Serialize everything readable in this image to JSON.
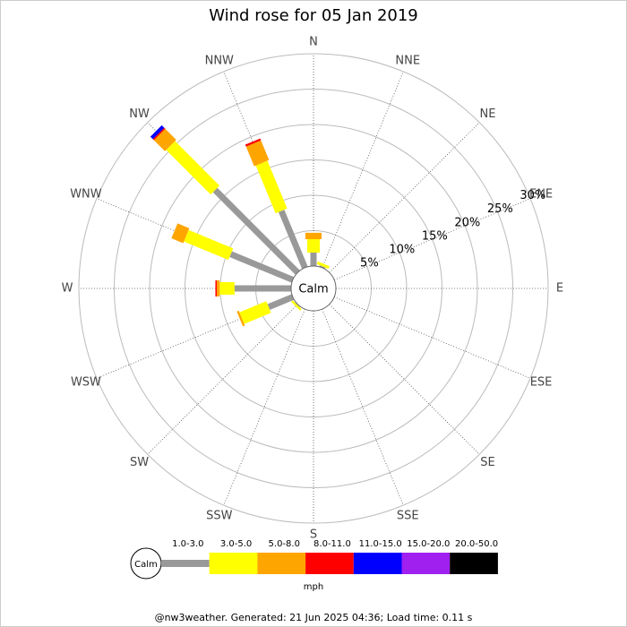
{
  "chart_data": {
    "type": "windrose",
    "title": "Wind rose for 05 Jan 2019",
    "directions": [
      "N",
      "NNE",
      "NE",
      "ENE",
      "E",
      "ESE",
      "SE",
      "SSE",
      "S",
      "SSW",
      "SW",
      "WSW",
      "W",
      "WNW",
      "NW",
      "NNW"
    ],
    "calm_label": "Calm",
    "rlim": [
      0,
      30
    ],
    "rticks": [
      {
        "value": 5,
        "label": "5%"
      },
      {
        "value": 10,
        "label": "10%"
      },
      {
        "value": 15,
        "label": "15%"
      },
      {
        "value": 20,
        "label": "20%"
      },
      {
        "value": 25,
        "label": "25%"
      },
      {
        "value": 30,
        "label": "30%"
      }
    ],
    "legend_unit": "mph",
    "series": [
      {
        "name": "1.0-3.0",
        "color": "#999999",
        "values": [
          1.9,
          0.2,
          0,
          0,
          0,
          0,
          0,
          0,
          0,
          0,
          0.1,
          3.7,
          8.0,
          9.5,
          16.5,
          8.7
        ]
      },
      {
        "name": "3.0-5.0",
        "color": "#ffff00",
        "values": [
          1.9,
          0.4,
          0,
          0,
          0,
          0,
          0,
          0,
          0,
          0,
          0.3,
          4.1,
          2.1,
          6.8,
          8.9,
          7.3
        ]
      },
      {
        "name": "5.0-8.0",
        "color": "#ffa500",
        "values": [
          0.9,
          0,
          0,
          0,
          0,
          0,
          0,
          0,
          0,
          0,
          0,
          0.3,
          0.4,
          1.8,
          2.2,
          3.0
        ]
      },
      {
        "name": "8.0-11.0",
        "color": "#ff0000",
        "values": [
          0,
          0,
          0,
          0,
          0,
          0,
          0,
          0,
          0,
          0,
          0,
          0,
          0.2,
          0,
          0.2,
          0.3
        ]
      },
      {
        "name": "11.0-15.0",
        "color": "#0000ff",
        "values": [
          0,
          0,
          0,
          0,
          0,
          0,
          0,
          0,
          0,
          0,
          0,
          0,
          0,
          0,
          0.5,
          0
        ]
      },
      {
        "name": "15.0-20.0",
        "color": "#a020f0",
        "values": [
          0,
          0,
          0,
          0,
          0,
          0,
          0,
          0,
          0,
          0,
          0,
          0,
          0,
          0,
          0,
          0
        ]
      },
      {
        "name": "20.0-50.0",
        "color": "#000000",
        "values": [
          0,
          0,
          0,
          0,
          0,
          0,
          0,
          0,
          0,
          0,
          0,
          0,
          0,
          0,
          0,
          0
        ]
      }
    ]
  },
  "footer": "@nw3weather. Generated: 21 Jun 2025 04:36; Load time: 0.11 s"
}
